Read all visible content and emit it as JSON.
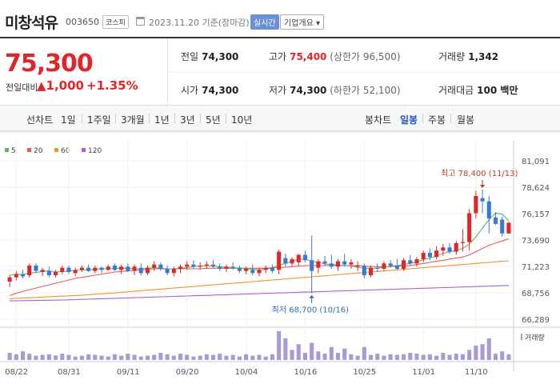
{
  "header": {
    "name": "미창석유",
    "code": "003650",
    "market": "코스피",
    "asof": "2023.11.20 기준(장마감)",
    "realtime_label": "실시간",
    "overview_label": "기업개요 ▾"
  },
  "price": {
    "current": "75,300",
    "change_label": "전일대비",
    "change_value": "▲1,000",
    "change_pct": "+1.35%"
  },
  "summary": {
    "prev_label": "전일",
    "prev": "74,300",
    "high_label": "고가",
    "high": "75,400",
    "upper_limit": "(상한가 96,500)",
    "volume_label": "거래량",
    "volume": "1,342",
    "open_label": "시가",
    "open": "74,300",
    "low_label": "저가",
    "low": "74,300",
    "lower_limit": "(하한가 52,100)",
    "amount_label": "거래대금",
    "amount": "100 백만"
  },
  "periods": {
    "line_label": "선차트",
    "line_items": [
      "1일",
      "1주일",
      "3개월",
      "1년",
      "3년",
      "5년",
      "10년"
    ],
    "candle_label": "봉차트",
    "candle_items": [
      "일봉",
      "주봉",
      "월봉"
    ],
    "active_candle": "일봉"
  },
  "colors": {
    "up": "#e0262a",
    "down": "#3a78d6",
    "ma5": "#5cb85c",
    "ma20": "#e85a5a",
    "ma60": "#f0932b",
    "ma120": "#a262d6",
    "volume": "#a999d6"
  },
  "chart_data": {
    "type": "candlestick",
    "legend": [
      {
        "name": "5",
        "color": "#5cb85c"
      },
      {
        "name": "20",
        "color": "#e85a5a"
      },
      {
        "name": "60",
        "color": "#f0932b"
      },
      {
        "name": "120",
        "color": "#a262d6"
      }
    ],
    "y_ticks": [
      "81,091",
      "78,624",
      "76,157",
      "73,690",
      "71,223",
      "68,756",
      "66,289"
    ],
    "ylim": [
      66289,
      81091
    ],
    "x_ticks": [
      "08/22",
      "08/31",
      "09/11",
      "09/20",
      "10/04",
      "10/16",
      "10/25",
      "11/01",
      "11/10"
    ],
    "high_annotation": "최고 78,400 (11/13)",
    "low_annotation": "최저 68,700 (10/16)",
    "volume_label": "거래량",
    "candles": [
      {
        "o": 69800,
        "h": 70400,
        "l": 69300,
        "c": 70200
      },
      {
        "o": 70200,
        "h": 70800,
        "l": 69900,
        "c": 70500
      },
      {
        "o": 70500,
        "h": 70900,
        "l": 70100,
        "c": 70300
      },
      {
        "o": 70400,
        "h": 71500,
        "l": 70200,
        "c": 71300
      },
      {
        "o": 71300,
        "h": 71500,
        "l": 70600,
        "c": 70800
      },
      {
        "o": 70700,
        "h": 71100,
        "l": 70300,
        "c": 70900
      },
      {
        "o": 70800,
        "h": 71200,
        "l": 70200,
        "c": 70400
      },
      {
        "o": 70400,
        "h": 70900,
        "l": 70200,
        "c": 70700
      },
      {
        "o": 70700,
        "h": 71300,
        "l": 70500,
        "c": 71100
      },
      {
        "o": 71100,
        "h": 71300,
        "l": 70500,
        "c": 70700
      },
      {
        "o": 70600,
        "h": 71100,
        "l": 70300,
        "c": 70900
      },
      {
        "o": 70900,
        "h": 71300,
        "l": 70700,
        "c": 71100
      },
      {
        "o": 71100,
        "h": 71400,
        "l": 70700,
        "c": 70800
      },
      {
        "o": 70800,
        "h": 71300,
        "l": 70600,
        "c": 71100
      },
      {
        "o": 71100,
        "h": 71200,
        "l": 70600,
        "c": 70900
      },
      {
        "o": 70900,
        "h": 71400,
        "l": 70800,
        "c": 71200
      },
      {
        "o": 71300,
        "h": 71500,
        "l": 70800,
        "c": 70900
      },
      {
        "o": 70900,
        "h": 71400,
        "l": 70500,
        "c": 71200
      },
      {
        "o": 71200,
        "h": 71500,
        "l": 70700,
        "c": 70800
      },
      {
        "o": 70800,
        "h": 71400,
        "l": 70400,
        "c": 71200
      },
      {
        "o": 71100,
        "h": 71500,
        "l": 70400,
        "c": 70600
      },
      {
        "o": 70600,
        "h": 71300,
        "l": 70400,
        "c": 71100
      },
      {
        "o": 71100,
        "h": 71700,
        "l": 70800,
        "c": 71400
      },
      {
        "o": 71400,
        "h": 71600,
        "l": 70800,
        "c": 71000
      },
      {
        "o": 71000,
        "h": 71300,
        "l": 70400,
        "c": 70600
      },
      {
        "o": 70600,
        "h": 71200,
        "l": 70300,
        "c": 71000
      },
      {
        "o": 71000,
        "h": 71400,
        "l": 70600,
        "c": 71200
      },
      {
        "o": 71200,
        "h": 71700,
        "l": 70900,
        "c": 71400
      },
      {
        "o": 71400,
        "h": 71800,
        "l": 71000,
        "c": 71200
      },
      {
        "o": 71200,
        "h": 71600,
        "l": 70900,
        "c": 71300
      },
      {
        "o": 71300,
        "h": 71700,
        "l": 71000,
        "c": 71400
      },
      {
        "o": 71400,
        "h": 71800,
        "l": 71100,
        "c": 71200
      },
      {
        "o": 71200,
        "h": 71500,
        "l": 70800,
        "c": 71000
      },
      {
        "o": 71000,
        "h": 71400,
        "l": 70700,
        "c": 71200
      },
      {
        "o": 71200,
        "h": 71600,
        "l": 70900,
        "c": 71100
      },
      {
        "o": 71100,
        "h": 71300,
        "l": 70600,
        "c": 70800
      },
      {
        "o": 70800,
        "h": 71200,
        "l": 70500,
        "c": 71000
      },
      {
        "o": 70900,
        "h": 71400,
        "l": 70400,
        "c": 70600
      },
      {
        "o": 70600,
        "h": 71100,
        "l": 70300,
        "c": 70900
      },
      {
        "o": 70900,
        "h": 71300,
        "l": 70600,
        "c": 71100
      },
      {
        "o": 71100,
        "h": 71400,
        "l": 70600,
        "c": 70800
      },
      {
        "o": 70900,
        "h": 72800,
        "l": 70500,
        "c": 72600
      },
      {
        "o": 72000,
        "h": 72400,
        "l": 71200,
        "c": 71500
      },
      {
        "o": 71500,
        "h": 72100,
        "l": 71200,
        "c": 71900
      },
      {
        "o": 71600,
        "h": 72400,
        "l": 71300,
        "c": 72300
      },
      {
        "o": 72300,
        "h": 72700,
        "l": 71600,
        "c": 71800
      },
      {
        "o": 71800,
        "h": 74100,
        "l": 68700,
        "c": 70800
      },
      {
        "o": 71100,
        "h": 71900,
        "l": 70600,
        "c": 71700
      },
      {
        "o": 71700,
        "h": 72200,
        "l": 71300,
        "c": 71500
      },
      {
        "o": 71500,
        "h": 72300,
        "l": 71000,
        "c": 71200
      },
      {
        "o": 71200,
        "h": 71900,
        "l": 70800,
        "c": 71700
      },
      {
        "o": 71700,
        "h": 72400,
        "l": 71200,
        "c": 71400
      },
      {
        "o": 71400,
        "h": 71900,
        "l": 71000,
        "c": 71600
      },
      {
        "o": 71200,
        "h": 71700,
        "l": 70800,
        "c": 71300
      },
      {
        "o": 71300,
        "h": 71500,
        "l": 70100,
        "c": 70400
      },
      {
        "o": 70400,
        "h": 71300,
        "l": 70200,
        "c": 71100
      },
      {
        "o": 71100,
        "h": 71500,
        "l": 70700,
        "c": 71000
      },
      {
        "o": 71000,
        "h": 71700,
        "l": 70800,
        "c": 71500
      },
      {
        "o": 71500,
        "h": 71800,
        "l": 71100,
        "c": 71300
      },
      {
        "o": 71300,
        "h": 71900,
        "l": 70900,
        "c": 71000
      },
      {
        "o": 71000,
        "h": 72000,
        "l": 70800,
        "c": 71800
      },
      {
        "o": 71800,
        "h": 72300,
        "l": 71300,
        "c": 71500
      },
      {
        "o": 71500,
        "h": 72100,
        "l": 71200,
        "c": 71900
      },
      {
        "o": 71900,
        "h": 72700,
        "l": 71600,
        "c": 72500
      },
      {
        "o": 72500,
        "h": 72900,
        "l": 71800,
        "c": 72100
      },
      {
        "o": 72100,
        "h": 73100,
        "l": 71900,
        "c": 72700
      },
      {
        "o": 72700,
        "h": 73300,
        "l": 72200,
        "c": 73000
      },
      {
        "o": 73000,
        "h": 73400,
        "l": 72400,
        "c": 72600
      },
      {
        "o": 72600,
        "h": 73600,
        "l": 72300,
        "c": 73400
      },
      {
        "o": 73400,
        "h": 74700,
        "l": 72600,
        "c": 73500
      },
      {
        "o": 73500,
        "h": 76600,
        "l": 72700,
        "c": 76200
      },
      {
        "o": 76200,
        "h": 78300,
        "l": 75700,
        "c": 77800
      },
      {
        "o": 77600,
        "h": 78400,
        "l": 76200,
        "c": 77300
      },
      {
        "o": 77300,
        "h": 77800,
        "l": 74300,
        "c": 75700
      },
      {
        "o": 75800,
        "h": 76300,
        "l": 75100,
        "c": 75200
      },
      {
        "o": 75600,
        "h": 75900,
        "l": 74000,
        "c": 74300
      },
      {
        "o": 74300,
        "h": 75400,
        "l": 74300,
        "c": 75300
      }
    ],
    "ma5": [
      70400,
      70500,
      70450,
      70600,
      70650,
      70750,
      70800,
      70700,
      70750,
      70800,
      70850,
      70900,
      70900,
      70950,
      71000,
      71000,
      71050,
      71050,
      71050,
      71000,
      71000,
      71050,
      71100,
      71050,
      71000,
      71000,
      71050,
      71100,
      71200,
      71250,
      71300,
      71250,
      71200,
      71150,
      71100,
      71050,
      71000,
      70950,
      70900,
      70950,
      71100,
      71350,
      71500,
      71700,
      71900,
      71900,
      71700,
      71600,
      71450,
      71400,
      71350,
      71300,
      71250,
      71150,
      71050,
      71000,
      71050,
      71150,
      71250,
      71300,
      71400,
      71500,
      71650,
      71850,
      72000,
      72200,
      72450,
      72600,
      72700,
      72900,
      73300,
      74000,
      74800,
      75600,
      76200,
      76100,
      75500
    ],
    "ma20": [
      68500,
      68700,
      68900,
      69050,
      69200,
      69350,
      69500,
      69650,
      69800,
      69950,
      70100,
      70200,
      70300,
      70400,
      70500,
      70600,
      70700,
      70750,
      70800,
      70850,
      70900,
      70950,
      71000,
      71000,
      71000,
      71000,
      71000,
      71000,
      71000,
      71000,
      71050,
      71050,
      71050,
      71050,
      71050,
      71050,
      71050,
      71050,
      71050,
      71050,
      71100,
      71100,
      71150,
      71200,
      71250,
      71300,
      71300,
      71300,
      71300,
      71300,
      71300,
      71300,
      71300,
      71300,
      71250,
      71200,
      71200,
      71200,
      71200,
      71250,
      71250,
      71300,
      71400,
      71500,
      71600,
      71700,
      71800,
      71900,
      72000,
      72100,
      72300,
      72600,
      72900,
      73200,
      73400,
      73600,
      73800
    ],
    "ma60": [
      68200,
      68230,
      68260,
      68290,
      68320,
      68350,
      68380,
      68410,
      68440,
      68470,
      68500,
      68540,
      68580,
      68620,
      68660,
      68700,
      68750,
      68800,
      68850,
      68900,
      68950,
      69000,
      69050,
      69100,
      69150,
      69200,
      69250,
      69300,
      69350,
      69400,
      69450,
      69500,
      69550,
      69600,
      69650,
      69700,
      69750,
      69800,
      69850,
      69900,
      69950,
      70000,
      70050,
      70100,
      70150,
      70200,
      70250,
      70300,
      70350,
      70400,
      70450,
      70500,
      70550,
      70600,
      70650,
      70700,
      70750,
      70800,
      70850,
      70900,
      70950,
      71000,
      71050,
      71100,
      71150,
      71200,
      71250,
      71300,
      71350,
      71400,
      71450,
      71500,
      71550,
      71600,
      71650,
      71700,
      71750
    ],
    "ma120": [
      68000,
      68010,
      68020,
      68030,
      68040,
      68050,
      68060,
      68070,
      68080,
      68100,
      68120,
      68140,
      68160,
      68180,
      68200,
      68220,
      68240,
      68260,
      68280,
      68300,
      68320,
      68340,
      68360,
      68380,
      68400,
      68420,
      68440,
      68460,
      68480,
      68500,
      68520,
      68540,
      68560,
      68580,
      68600,
      68620,
      68640,
      68660,
      68680,
      68700,
      68720,
      68740,
      68760,
      68780,
      68800,
      68820,
      68840,
      68860,
      68880,
      68900,
      68920,
      68940,
      68960,
      68980,
      69000,
      69020,
      69040,
      69060,
      69080,
      69100,
      69120,
      69140,
      69160,
      69180,
      69200,
      69220,
      69240,
      69260,
      69280,
      69300,
      69320,
      69340,
      69360,
      69380,
      69400,
      69420,
      69440
    ],
    "volume": [
      0.25,
      0.2,
      0.3,
      0.22,
      0.15,
      0.18,
      0.2,
      0.16,
      0.22,
      0.18,
      0.12,
      0.15,
      0.2,
      0.18,
      0.15,
      0.12,
      0.2,
      0.15,
      0.22,
      0.18,
      0.12,
      0.15,
      0.18,
      0.25,
      0.2,
      0.15,
      0.22,
      0.18,
      0.12,
      0.15,
      0.2,
      0.18,
      0.22,
      0.15,
      0.18,
      0.12,
      0.2,
      0.15,
      0.18,
      0.12,
      0.2,
      1.0,
      0.75,
      0.35,
      0.55,
      0.25,
      0.6,
      0.3,
      0.22,
      0.45,
      0.25,
      0.4,
      0.2,
      0.15,
      0.45,
      0.18,
      0.22,
      0.15,
      0.2,
      0.18,
      0.2,
      0.25,
      0.22,
      0.18,
      0.2,
      0.15,
      0.25,
      0.18,
      0.22,
      0.2,
      0.35,
      0.5,
      0.55,
      0.75,
      0.22,
      0.3,
      0.2
    ]
  }
}
